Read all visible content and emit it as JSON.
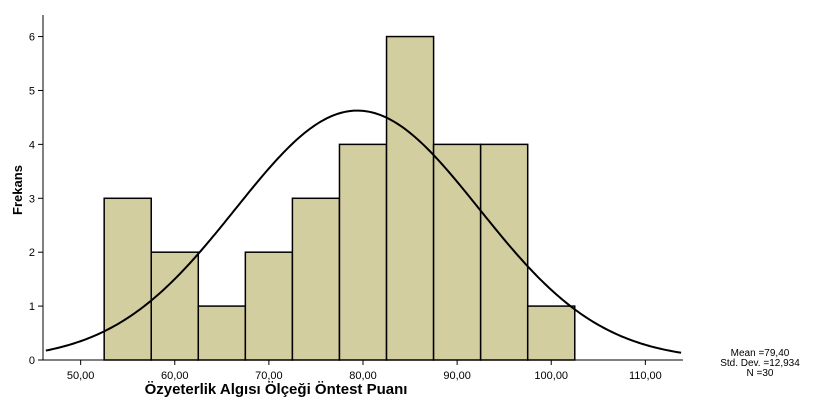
{
  "chart_data": {
    "type": "bar",
    "subtype": "histogram",
    "xlabel": "Özyeterlik Algısı Ölçeği Öntest Puanı",
    "ylabel": "Frekans",
    "bins": [
      {
        "start": 52.5,
        "end": 57.5,
        "count": 3
      },
      {
        "start": 57.5,
        "end": 62.5,
        "count": 2
      },
      {
        "start": 62.5,
        "end": 67.5,
        "count": 1
      },
      {
        "start": 67.5,
        "end": 72.5,
        "count": 2
      },
      {
        "start": 72.5,
        "end": 77.5,
        "count": 3
      },
      {
        "start": 77.5,
        "end": 82.5,
        "count": 4
      },
      {
        "start": 82.5,
        "end": 87.5,
        "count": 6
      },
      {
        "start": 87.5,
        "end": 92.5,
        "count": 4
      },
      {
        "start": 92.5,
        "end": 97.5,
        "count": 4
      },
      {
        "start": 97.5,
        "end": 102.5,
        "count": 1
      }
    ],
    "xlim": [
      46,
      114
    ],
    "ylim": [
      0,
      6.4
    ],
    "x_ticks": [
      50,
      60,
      70,
      80,
      90,
      100,
      110
    ],
    "x_tick_labels": [
      "50,00",
      "60,00",
      "70,00",
      "80,00",
      "90,00",
      "100,00",
      "110,00"
    ],
    "y_ticks": [
      0,
      1,
      2,
      3,
      4,
      5,
      6
    ],
    "y_tick_labels": [
      "0",
      "1",
      "2",
      "3",
      "4",
      "5",
      "6"
    ],
    "normal_curve": {
      "mean": 79.4,
      "std_dev": 12.934,
      "n": 30,
      "bin_width": 5
    },
    "stats_text": [
      "Mean =79,40",
      "Std. Dev. =12,934",
      "N =30"
    ],
    "colors": {
      "bar_fill": "#d3cea0",
      "bar_stroke": "#000000",
      "curve": "#000000",
      "axis": "#000000"
    },
    "grid": false,
    "legend": "none"
  }
}
